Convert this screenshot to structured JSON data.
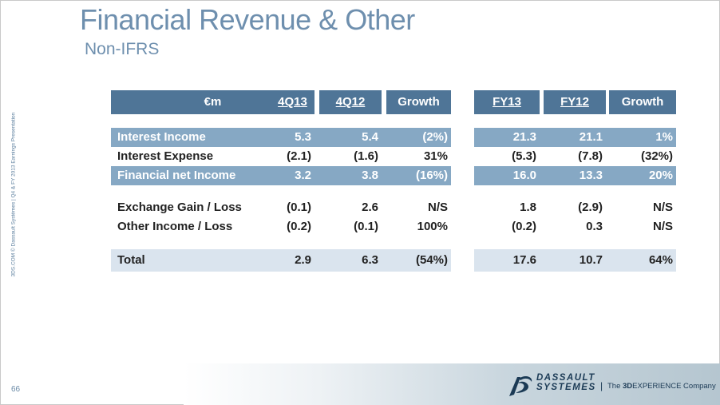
{
  "slide": {
    "title": "Financial Revenue & Other",
    "subtitle": "Non-IFRS",
    "side_text": "3DS.COM © Dassault Systèmes | Q4 & FY 2013 Earnings Presentation",
    "page_number": "66"
  },
  "table": {
    "headers": [
      "€m",
      "4Q13",
      "4Q12",
      "Growth",
      "FY13",
      "FY12",
      "Growth"
    ],
    "rows": [
      {
        "label": "Interest Income",
        "values": [
          "5.3",
          "5.4",
          "(2%)",
          "21.3",
          "21.1",
          "1%"
        ]
      },
      {
        "label": "Interest Expense",
        "values": [
          "(2.1)",
          "(1.6)",
          "31%",
          "(5.3)",
          "(7.8)",
          "(32%)"
        ]
      },
      {
        "label": "Financial net Income",
        "values": [
          "3.2",
          "3.8",
          "(16%)",
          "16.0",
          "13.3",
          "20%"
        ]
      },
      {
        "label": "Exchange Gain / Loss",
        "values": [
          "(0.1)",
          "2.6",
          "N/S",
          "1.8",
          "(2.9)",
          "N/S"
        ]
      },
      {
        "label": "Other Income / Loss",
        "values": [
          "(0.2)",
          "(0.1)",
          "100%",
          "(0.2)",
          "0.3",
          "N/S"
        ]
      },
      {
        "label": "Total",
        "values": [
          "2.9",
          "6.3",
          "(54%)",
          "17.6",
          "10.7",
          "64%"
        ]
      }
    ]
  },
  "footer": {
    "logo_line1": "DASSAULT",
    "logo_line2": "SYSTEMES",
    "separator": "|",
    "tagline_prefix": "The ",
    "tagline_bold": "3D",
    "tagline_rest": "EXPERIENCE Company"
  },
  "colors": {
    "title": "#6e8fae",
    "header": "#4f7597",
    "band_medium": "#86a8c4",
    "band_light": "#dae4ee"
  }
}
